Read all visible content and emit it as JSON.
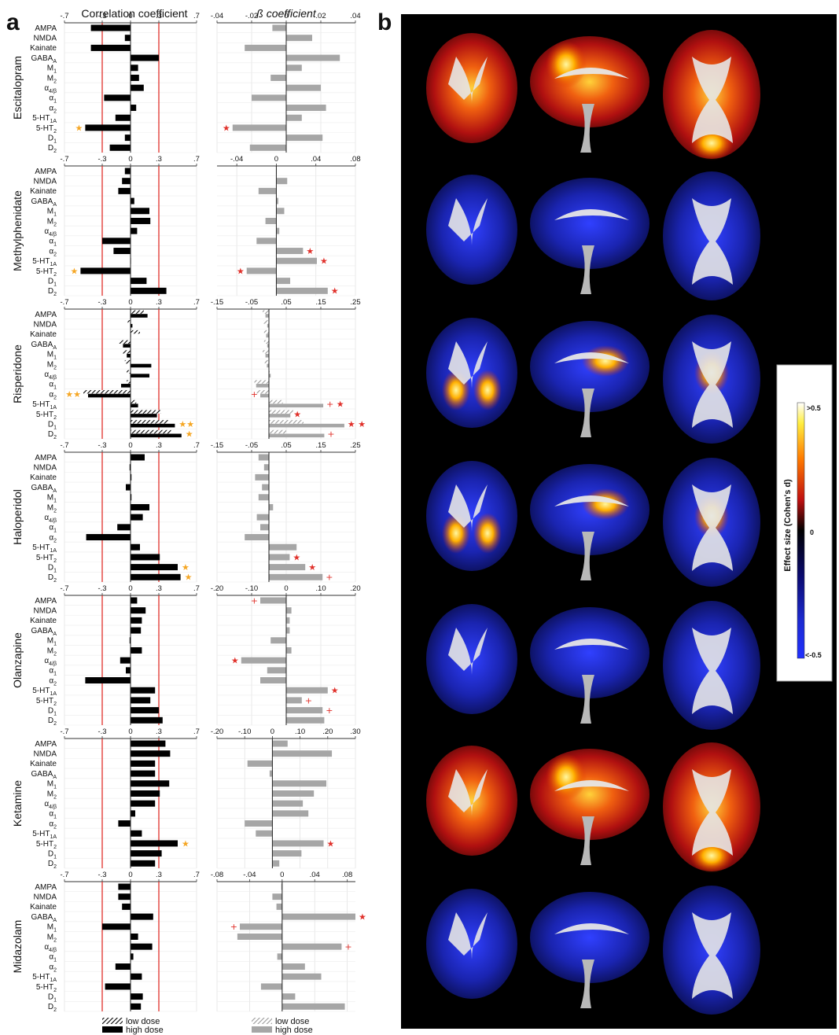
{
  "panel_labels": {
    "a": "a",
    "b": "b"
  },
  "headers": {
    "corr": "Correlation coefficient",
    "beta": "ß coefficient"
  },
  "receptors": [
    "AMPA",
    "NMDA",
    "Kainate",
    "GABA_A",
    "M_1",
    "M_2",
    "α_4/β_2",
    "α_1",
    "α_2",
    "5-HT_1A",
    "5-HT_2",
    "D_1",
    "D_2"
  ],
  "legend": {
    "low": "low dose",
    "high": "high dose"
  },
  "colorbar": {
    "title": "Effect size (Cohen's d)",
    "top": ">0.5",
    "mid": "0",
    "bottom": "<-0.5"
  },
  "colors": {
    "high_corr": "#000000",
    "beta_bar": "#a6a6a6",
    "ref_line": "#e0302a",
    "star_orange": "#f5a623",
    "sig_red": "#e0302a",
    "hatch": "#555555"
  },
  "chart_data": [
    {
      "type": "bar",
      "drug": "Escitalopram",
      "corr_ticks": [
        "-.7",
        "-.3",
        "0",
        ".3",
        ".7"
      ],
      "beta_ticks": [
        "-.04",
        "-.02",
        "0",
        ".02",
        ".04"
      ],
      "beta_lim": [
        -0.04,
        0.04
      ],
      "series": [
        {
          "name": "high dose",
          "corr": [
            -0.42,
            -0.06,
            -0.42,
            0.3,
            0.08,
            0.09,
            0.14,
            -0.28,
            0.06,
            -0.16,
            -0.48,
            -0.06,
            -0.22
          ],
          "beta": [
            -0.008,
            0.015,
            -0.024,
            0.031,
            0.009,
            -0.009,
            0.02,
            -0.02,
            0.023,
            0.009,
            -0.031,
            0.021,
            -0.021
          ]
        }
      ],
      "markers": [
        {
          "i": 10,
          "col": "corr",
          "sym": "★",
          "color": "orange"
        },
        {
          "i": 10,
          "col": "beta",
          "sym": "★",
          "color": "red"
        }
      ]
    },
    {
      "type": "bar",
      "drug": "Methylphenidate",
      "corr_ticks": [
        "-.7",
        "-.3",
        "0",
        ".3",
        ".7"
      ],
      "beta_ticks": [
        "-.04",
        "0",
        ".04",
        ".08"
      ],
      "beta_lim": [
        -0.06,
        0.08
      ],
      "series": [
        {
          "name": "high dose",
          "corr": [
            -0.06,
            -0.09,
            -0.13,
            0.04,
            0.2,
            0.21,
            0.07,
            -0.3,
            -0.18,
            0.0,
            -0.53,
            0.17,
            0.38
          ],
          "beta": [
            0.0,
            0.011,
            -0.018,
            0.002,
            0.008,
            -0.011,
            0.003,
            -0.02,
            0.027,
            0.041,
            -0.03,
            0.014,
            0.052
          ]
        }
      ],
      "markers": [
        {
          "i": 8,
          "col": "beta",
          "sym": "★",
          "color": "red"
        },
        {
          "i": 9,
          "col": "beta",
          "sym": "★",
          "color": "red"
        },
        {
          "i": 10,
          "col": "corr",
          "sym": "★",
          "color": "orange"
        },
        {
          "i": 10,
          "col": "beta",
          "sym": "★",
          "color": "red"
        },
        {
          "i": 12,
          "col": "beta",
          "sym": "★",
          "color": "red"
        }
      ]
    },
    {
      "type": "bar",
      "drug": "Risperidone",
      "corr_ticks": [
        "-.7",
        "-.3",
        "0",
        ".3",
        ".7"
      ],
      "beta_ticks": [
        "-.15",
        "-.05",
        ".05",
        ".15",
        ".25"
      ],
      "beta_lim": [
        -0.15,
        0.25
      ],
      "series": [
        {
          "name": "high dose",
          "corr": [
            0.18,
            0.02,
            0.0,
            -0.08,
            -0.04,
            0.22,
            0.2,
            -0.1,
            -0.45,
            0.08,
            0.28,
            0.47,
            0.54
          ],
          "beta": [
            -0.01,
            -0.005,
            -0.008,
            -0.005,
            -0.01,
            -0.006,
            0.005,
            -0.037,
            -0.025,
            0.157,
            0.062,
            0.218,
            0.16
          ]
        },
        {
          "name": "low dose",
          "corr": [
            0.14,
            -0.03,
            0.1,
            -0.12,
            -0.08,
            -0.06,
            -0.04,
            -0.04,
            -0.5,
            0.06,
            0.32,
            0.4,
            0.43
          ],
          "beta": [
            -0.018,
            -0.016,
            -0.014,
            -0.014,
            -0.018,
            -0.012,
            0.002,
            -0.042,
            -0.035,
            0.04,
            0.07,
            0.1,
            0.05
          ]
        }
      ],
      "markers": [
        {
          "i": 8,
          "col": "corr",
          "sym": "★★",
          "color": "orange"
        },
        {
          "i": 8,
          "col": "beta",
          "sym": "+",
          "color": "red"
        },
        {
          "i": 9,
          "col": "beta",
          "sym": "+ ★",
          "color": "red"
        },
        {
          "i": 10,
          "col": "beta",
          "sym": "★",
          "color": "red"
        },
        {
          "i": 11,
          "col": "corr",
          "sym": "★★",
          "color": "orange"
        },
        {
          "i": 11,
          "col": "beta",
          "sym": "★ ★",
          "color": "red"
        },
        {
          "i": 12,
          "col": "corr",
          "sym": "★",
          "color": "orange"
        },
        {
          "i": 12,
          "col": "beta",
          "sym": "+",
          "color": "red"
        }
      ]
    },
    {
      "type": "bar",
      "drug": "Haloperidol",
      "corr_ticks": [
        "-.7",
        "-.3",
        "0",
        ".3",
        ".7"
      ],
      "beta_ticks": [
        "-.15",
        "-.05",
        ".05",
        ".15",
        ".25"
      ],
      "beta_lim": [
        -0.15,
        0.25
      ],
      "series": [
        {
          "name": "high dose",
          "corr": [
            0.15,
            -0.01,
            0.01,
            -0.05,
            0.01,
            0.2,
            0.13,
            -0.14,
            -0.47,
            0.1,
            0.31,
            0.5,
            0.53
          ],
          "beta": [
            -0.03,
            -0.014,
            -0.04,
            -0.02,
            -0.03,
            0.012,
            -0.035,
            -0.025,
            -0.07,
            0.08,
            0.06,
            0.105,
            0.155
          ]
        }
      ],
      "markers": [
        {
          "i": 10,
          "col": "beta",
          "sym": "★",
          "color": "red"
        },
        {
          "i": 11,
          "col": "corr",
          "sym": "★",
          "color": "orange"
        },
        {
          "i": 11,
          "col": "beta",
          "sym": "★",
          "color": "red"
        },
        {
          "i": 12,
          "col": "corr",
          "sym": "★",
          "color": "orange"
        },
        {
          "i": 12,
          "col": "beta",
          "sym": "+",
          "color": "red"
        }
      ]
    },
    {
      "type": "bar",
      "drug": "Olanzapine",
      "corr_ticks": [
        "-.7",
        "-.3",
        "0",
        ".3",
        ".7"
      ],
      "beta_ticks": [
        "-.20",
        "-.10",
        "0",
        ".10",
        ".20"
      ],
      "beta_lim": [
        -0.2,
        0.2
      ],
      "series": [
        {
          "name": "high dose",
          "corr": [
            0.07,
            0.16,
            0.12,
            0.11,
            -0.01,
            0.12,
            -0.11,
            -0.05,
            -0.48,
            0.26,
            0.21,
            0.3,
            0.34
          ],
          "beta": [
            -0.075,
            0.015,
            0.01,
            0.01,
            -0.045,
            0.015,
            -0.13,
            -0.055,
            -0.075,
            0.12,
            0.045,
            0.105,
            0.11
          ]
        }
      ],
      "markers": [
        {
          "i": 0,
          "col": "beta",
          "sym": "+",
          "color": "red"
        },
        {
          "i": 6,
          "col": "beta",
          "sym": "★",
          "color": "red"
        },
        {
          "i": 9,
          "col": "beta",
          "sym": "★",
          "color": "red"
        },
        {
          "i": 10,
          "col": "beta",
          "sym": "+",
          "color": "red"
        },
        {
          "i": 11,
          "col": "beta",
          "sym": "+",
          "color": "red"
        }
      ]
    },
    {
      "type": "bar",
      "drug": "Ketamine",
      "corr_ticks": [
        "-.7",
        "-.3",
        "0",
        ".3",
        ".7"
      ],
      "beta_ticks": [
        "-.20",
        "-.10",
        "0",
        ".10",
        ".20",
        ".30"
      ],
      "beta_lim": [
        -0.2,
        0.3
      ],
      "series": [
        {
          "name": "high dose",
          "corr": [
            0.37,
            0.42,
            0.26,
            0.26,
            0.41,
            0.31,
            0.26,
            0.05,
            -0.13,
            0.12,
            0.5,
            0.33,
            0.26
          ],
          "beta": [
            0.055,
            0.215,
            -0.09,
            -0.01,
            0.195,
            0.15,
            0.11,
            0.13,
            -0.1,
            -0.06,
            0.185,
            0.105,
            0.025
          ]
        }
      ],
      "markers": [
        {
          "i": 10,
          "col": "corr",
          "sym": "★",
          "color": "orange"
        },
        {
          "i": 10,
          "col": "beta",
          "sym": "★",
          "color": "red"
        }
      ]
    },
    {
      "type": "bar",
      "drug": "Midazolam",
      "corr_ticks": [
        "-.7",
        "-.3",
        "0",
        ".3",
        ".7"
      ],
      "beta_ticks": [
        "-.08",
        "-.04",
        "0",
        ".04",
        ".08"
      ],
      "beta_lim": [
        -0.08,
        0.09
      ],
      "series": [
        {
          "name": "high dose",
          "corr": [
            -0.13,
            -0.13,
            -0.09,
            0.24,
            -0.3,
            0.08,
            0.23,
            0.03,
            -0.16,
            0.12,
            -0.27,
            0.13,
            0.11
          ],
          "beta": [
            -0.001,
            -0.012,
            -0.007,
            0.09,
            -0.052,
            -0.055,
            0.073,
            -0.006,
            0.028,
            0.048,
            -0.026,
            0.016,
            0.077
          ]
        }
      ],
      "markers": [
        {
          "i": 3,
          "col": "beta",
          "sym": "★",
          "color": "red"
        },
        {
          "i": 4,
          "col": "beta",
          "sym": "+",
          "color": "red"
        },
        {
          "i": 6,
          "col": "beta",
          "sym": "+",
          "color": "red"
        }
      ]
    }
  ]
}
